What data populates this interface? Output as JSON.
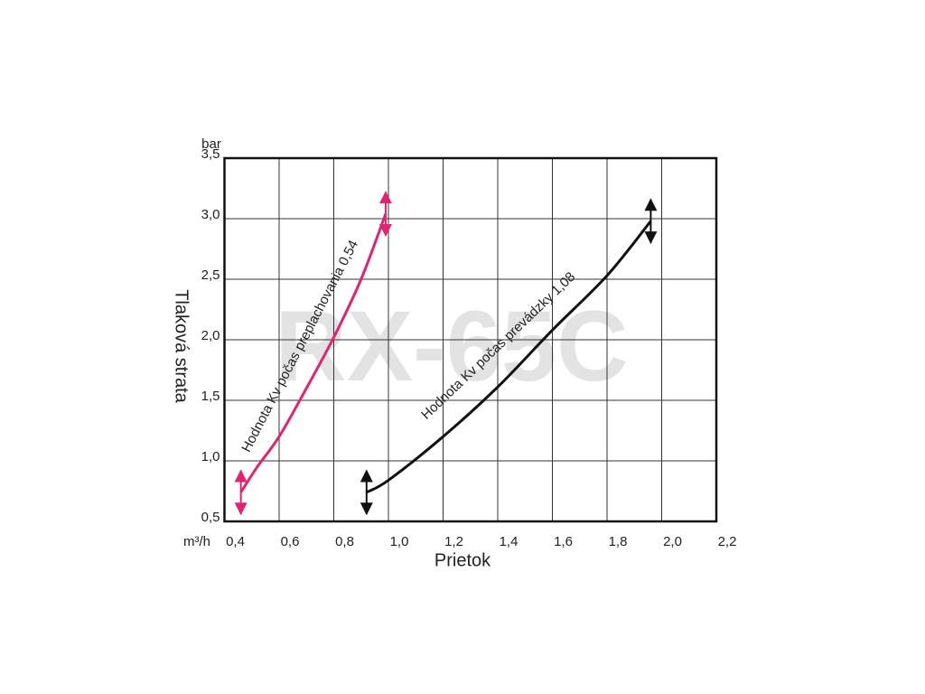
{
  "chart_data": {
    "type": "line",
    "watermark": "RX-65C",
    "y_unit": "bar",
    "x_unit": "m³/h",
    "xlabel": "Prietok",
    "ylabel": "Tlaková strata",
    "xlim": [
      0.4,
      2.2
    ],
    "xticks": [
      {
        "value": 0.4,
        "label": "0,4"
      },
      {
        "value": 0.6,
        "label": "0,6"
      },
      {
        "value": 0.8,
        "label": "0,8"
      },
      {
        "value": 1.0,
        "label": "1,0"
      },
      {
        "value": 1.2,
        "label": "1,2"
      },
      {
        "value": 1.4,
        "label": "1,4"
      },
      {
        "value": 1.6,
        "label": "1,6"
      },
      {
        "value": 1.8,
        "label": "1,8"
      },
      {
        "value": 2.0,
        "label": "2,0"
      },
      {
        "value": 2.2,
        "label": "2,2"
      }
    ],
    "ylim": [
      0.5,
      3.5
    ],
    "yticks": [
      {
        "value": 0.5,
        "label": "0,5"
      },
      {
        "value": 1.0,
        "label": "1,0"
      },
      {
        "value": 1.5,
        "label": "1,5"
      },
      {
        "value": 2.0,
        "label": "2,0"
      },
      {
        "value": 2.5,
        "label": "2,5"
      },
      {
        "value": 3.0,
        "label": "3,0"
      },
      {
        "value": 3.5,
        "label": "3,5"
      }
    ],
    "grid": true,
    "series": [
      {
        "name": "Hodnota Kv počas preplachovania 0,54",
        "color": "#e0246f",
        "x": [
          0.46,
          0.52,
          0.6,
          0.7,
          0.8,
          0.9,
          0.99
        ],
        "values": [
          0.74,
          0.95,
          1.2,
          1.6,
          2.02,
          2.5,
          3.04
        ]
      },
      {
        "name": "Hodnota Kv počas prevádzky 1,08",
        "color": "#111111",
        "x": [
          0.92,
          1.0,
          1.2,
          1.4,
          1.6,
          1.8,
          1.96
        ],
        "values": [
          0.74,
          0.84,
          1.2,
          1.61,
          2.08,
          2.53,
          2.98
        ]
      }
    ]
  }
}
